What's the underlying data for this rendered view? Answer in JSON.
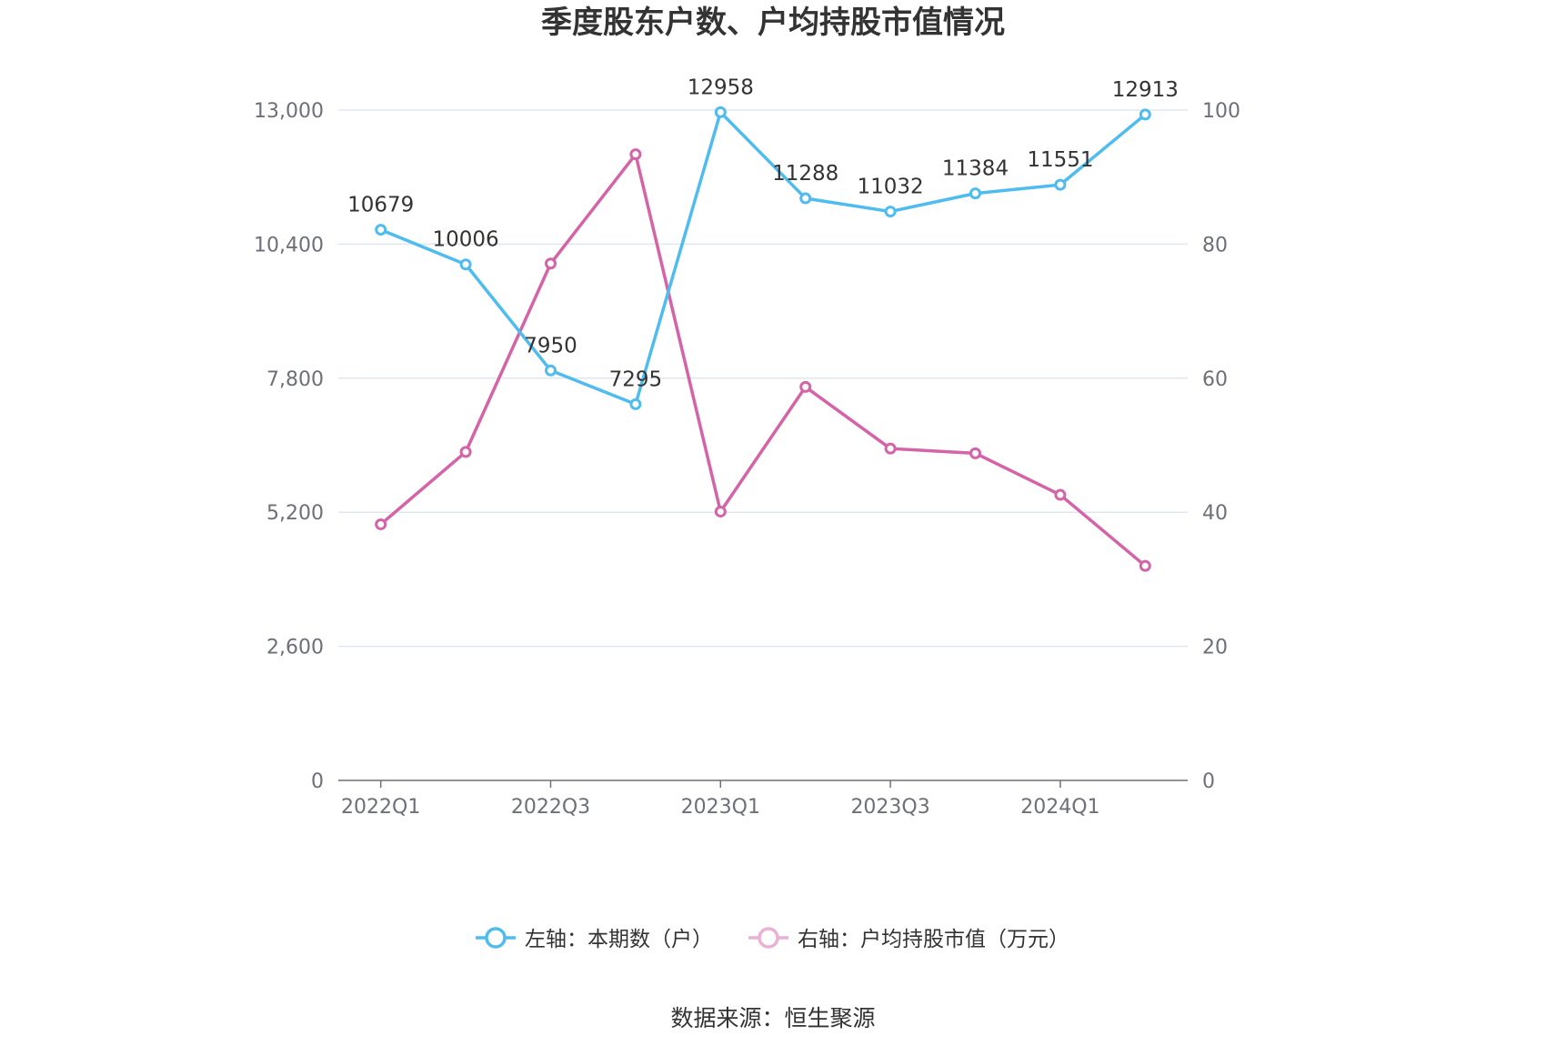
{
  "title": "季度股东户数、户均持股市值情况",
  "source": "数据来源：恒生聚源",
  "chart_data": {
    "type": "line",
    "categories": [
      "2022Q1",
      "2022Q2",
      "2022Q3",
      "2022Q4",
      "2023Q1",
      "2023Q2",
      "2023Q3",
      "2023Q4",
      "2024Q1",
      "2024Q2"
    ],
    "x_tick_labels": [
      "2022Q1",
      "2022Q3",
      "2023Q1",
      "2023Q3",
      "2024Q1"
    ],
    "y_left": {
      "ticks": [
        "0",
        "2,600",
        "5,200",
        "7,800",
        "10,400",
        "13,000"
      ],
      "range": [
        0,
        13000
      ]
    },
    "y_right": {
      "ticks": [
        "0",
        "20",
        "40",
        "60",
        "80",
        "100"
      ],
      "range": [
        0,
        100
      ]
    },
    "grid": true,
    "legend_position": "bottom-center",
    "series": [
      {
        "name": "左轴：本期数（户）",
        "axis": "left",
        "color": "#4fbcf0",
        "values": [
          10679,
          10006,
          7950,
          7295,
          12958,
          11288,
          11032,
          11384,
          11551,
          12913
        ],
        "labels": [
          "10679",
          "10006",
          "7950",
          "7295",
          "12958",
          "11288",
          "11032",
          "11384",
          "11551",
          "12913"
        ]
      },
      {
        "name": "右轴：户均持股市值（万元）",
        "axis": "right",
        "color": "#d563a8",
        "values": [
          38.2,
          49.0,
          77.1,
          93.4,
          40.1,
          58.7,
          49.5,
          48.8,
          42.6,
          32.0
        ]
      }
    ]
  }
}
